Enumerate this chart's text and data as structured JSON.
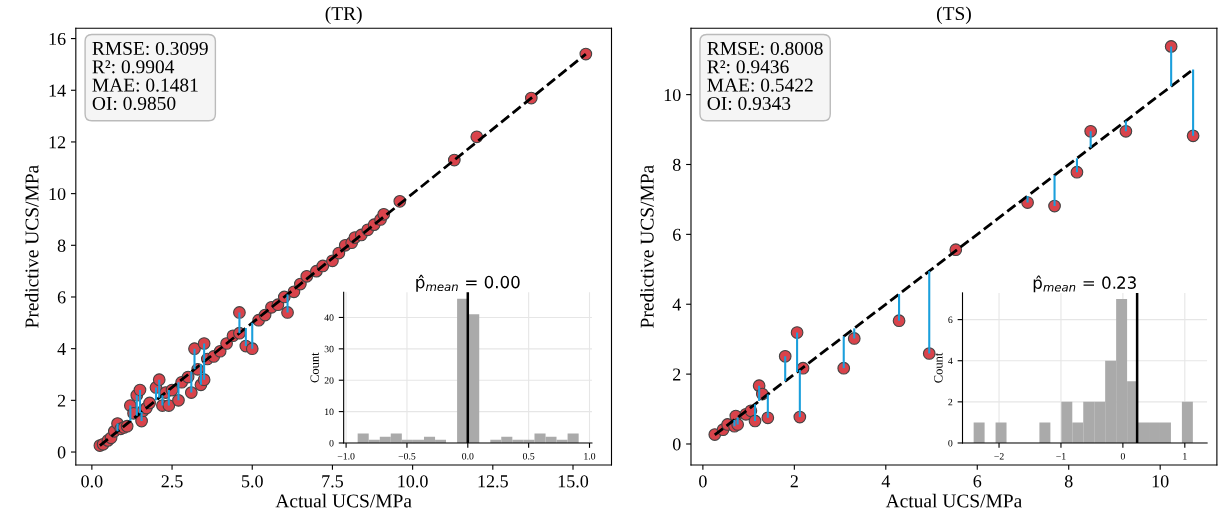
{
  "chart_data": [
    {
      "type": "scatter",
      "title": "(TR)",
      "xlabel": "Actual UCS/MPa",
      "ylabel": "Predictive UCS/MPa",
      "xlim": [
        -0.5,
        16.2
      ],
      "ylim": [
        -0.5,
        16.4
      ],
      "xticks": [
        {
          "value": 0,
          "label": "0.0"
        },
        {
          "value": 2.5,
          "label": "2.5"
        },
        {
          "value": 5,
          "label": "5.0"
        },
        {
          "value": 7.5,
          "label": "7.5"
        },
        {
          "value": 10,
          "label": "10.0"
        },
        {
          "value": 12.5,
          "label": "12.5"
        },
        {
          "value": 15,
          "label": "15.0"
        }
      ],
      "yticks": [
        0,
        2,
        4,
        6,
        8,
        10,
        12,
        14,
        16
      ],
      "annotations": [
        "RMSE: 0.3099\nR²: 0.9904\nMAE: 0.1481\nOI: 0.9850"
      ],
      "series": [
        {
          "type": "scatter",
          "marker": "circle",
          "color": "#d9434b",
          "x": [
            0.25,
            0.35,
            0.5,
            0.6,
            0.7,
            0.8,
            0.9,
            1.0,
            1.1,
            1.2,
            1.3,
            1.4,
            1.5,
            1.55,
            1.6,
            1.7,
            1.8,
            2.0,
            2.1,
            2.2,
            2.3,
            2.4,
            2.5,
            2.7,
            2.8,
            3.0,
            3.1,
            3.2,
            3.3,
            3.4,
            3.5,
            3.5,
            3.6,
            3.8,
            4.0,
            4.2,
            4.4,
            4.6,
            4.6,
            4.8,
            5.0,
            5.2,
            5.4,
            5.6,
            5.8,
            6.0,
            6.1,
            6.3,
            6.5,
            6.7,
            7.0,
            7.2,
            7.5,
            7.7,
            7.9,
            8.1,
            8.2,
            8.4,
            8.6,
            8.8,
            9.0,
            9.1,
            9.6,
            11.3,
            12.0,
            13.7,
            15.4
          ],
          "values": [
            0.25,
            0.3,
            0.45,
            0.55,
            0.8,
            1.1,
            0.9,
            0.95,
            1.0,
            1.8,
            1.5,
            2.2,
            2.4,
            1.2,
            1.6,
            1.7,
            1.9,
            2.5,
            2.8,
            1.8,
            2.3,
            1.8,
            2.4,
            2.0,
            2.7,
            2.9,
            2.3,
            4.0,
            3.2,
            2.6,
            4.2,
            2.8,
            3.6,
            3.7,
            3.9,
            4.2,
            4.5,
            4.6,
            5.4,
            4.1,
            4.0,
            5.1,
            5.3,
            5.6,
            5.7,
            6.0,
            5.4,
            6.2,
            6.5,
            6.8,
            7.0,
            7.2,
            7.4,
            7.7,
            8.0,
            8.1,
            8.3,
            8.4,
            8.6,
            8.8,
            9.0,
            9.2,
            9.7,
            11.3,
            12.2,
            13.7,
            15.4
          ],
          "errors": [
            null,
            null,
            null,
            null,
            null,
            [
              0.8,
              1.1
            ],
            null,
            null,
            null,
            [
              1.2,
              1.8
            ],
            null,
            [
              1.4,
              2.2
            ],
            [
              1.5,
              2.4
            ],
            [
              1.2,
              1.55
            ],
            null,
            null,
            null,
            [
              2.0,
              2.5
            ],
            [
              2.1,
              2.8
            ],
            [
              1.8,
              2.2
            ],
            null,
            [
              1.8,
              2.4
            ],
            null,
            [
              2.0,
              2.7
            ],
            null,
            null,
            [
              2.3,
              3.1
            ],
            [
              3.2,
              4.0
            ],
            null,
            [
              2.6,
              3.4
            ],
            [
              3.5,
              4.2
            ],
            [
              2.8,
              3.5
            ],
            null,
            null,
            null,
            null,
            null,
            null,
            [
              4.6,
              5.4
            ],
            [
              4.1,
              4.8
            ],
            [
              4.0,
              5.0
            ],
            null,
            null,
            null,
            null,
            null,
            [
              5.4,
              6.1
            ],
            null,
            null,
            null,
            null,
            null,
            null,
            null,
            null,
            null,
            null,
            null,
            null,
            null,
            null,
            null,
            null,
            null,
            null,
            null,
            null
          ]
        },
        {
          "type": "line",
          "line_style": "dashed",
          "color": "#000000",
          "x": [
            0.25,
            15.4
          ],
          "values": [
            0.25,
            15.4
          ]
        }
      ]
    },
    {
      "type": "histogram",
      "title": "p̂$_{mean}$ = 0.00",
      "ylabel": "Count",
      "color": "#aaaaaa",
      "grid": true,
      "xlim": [
        -1.02,
        1.02
      ],
      "ylim": [
        0,
        48
      ],
      "xticks": [
        {
          "value": -1.0,
          "label": "−1.0"
        },
        {
          "value": -0.5,
          "label": "−0.5"
        },
        {
          "value": 0.0,
          "label": "0.0"
        },
        {
          "value": 0.5,
          "label": "0.5"
        },
        {
          "value": 1.0,
          "label": "1.0"
        }
      ],
      "yticks": [
        0,
        10,
        20,
        30,
        40
      ],
      "bins": [
        -0.905,
        -0.814,
        -0.723,
        -0.633,
        -0.542,
        -0.451,
        -0.36,
        -0.269,
        -0.179,
        -0.088,
        0.003,
        0.094,
        0.185,
        0.275,
        0.366,
        0.457,
        0.548,
        0.639,
        0.729,
        0.82,
        0.911
      ],
      "values": [
        3,
        1,
        2,
        3,
        1,
        1,
        2,
        1,
        0,
        46,
        41,
        0,
        1,
        2,
        1,
        1,
        3,
        2,
        1,
        3
      ],
      "ref_lines": [
        {
          "axis": "x",
          "value": 0.0,
          "color": "#000000"
        }
      ]
    },
    {
      "type": "scatter",
      "title": "(TS)",
      "xlabel": "Actual UCS/MPa",
      "ylabel": "Predictive UCS/MPa",
      "xlim": [
        -0.26,
        11.24
      ],
      "ylim": [
        -0.6,
        11.9
      ],
      "xticks": [
        0,
        2,
        4,
        6,
        8,
        10
      ],
      "yticks": [
        0,
        2,
        4,
        6,
        8,
        10
      ],
      "annotations": [
        "RMSE: 0.8008\nR²: 0.9436\nMAE: 0.5422\nOI: 0.9343"
      ],
      "series": [
        {
          "type": "scatter",
          "marker": "circle",
          "color": "#d9434b",
          "x": [
            0.26,
            0.44,
            0.54,
            0.72,
            0.69,
            0.76,
            0.94,
            1.05,
            1.14,
            1.23,
            1.3,
            1.42,
            1.8,
            2.06,
            2.12,
            2.19,
            3.08,
            3.31,
            4.29,
            4.95,
            5.53,
            7.1,
            7.69,
            8.18,
            8.48,
            9.25,
            10.24,
            10.72
          ],
          "values": [
            0.27,
            0.41,
            0.56,
            0.8,
            0.51,
            0.56,
            0.85,
            0.95,
            0.66,
            1.67,
            1.43,
            0.75,
            2.51,
            3.19,
            0.77,
            2.17,
            2.17,
            3.02,
            3.53,
            2.59,
            5.56,
            6.91,
            6.81,
            7.78,
            8.95,
            8.95,
            11.38,
            8.82
          ],
          "errors": [
            null,
            null,
            null,
            null,
            [
              0.51,
              0.69
            ],
            [
              0.56,
              0.76
            ],
            null,
            null,
            [
              0.66,
              1.14
            ],
            [
              1.23,
              1.67
            ],
            null,
            [
              0.75,
              1.42
            ],
            [
              1.8,
              2.51
            ],
            [
              2.06,
              3.19
            ],
            [
              0.77,
              2.12
            ],
            null,
            [
              2.17,
              3.08
            ],
            [
              3.02,
              3.31
            ],
            [
              3.53,
              4.29
            ],
            [
              2.59,
              4.95
            ],
            null,
            [
              6.91,
              7.1
            ],
            [
              6.81,
              7.69
            ],
            [
              7.78,
              8.18
            ],
            [
              8.48,
              8.95
            ],
            [
              8.95,
              9.25
            ],
            [
              10.24,
              11.38
            ],
            [
              8.82,
              10.72
            ]
          ]
        },
        {
          "type": "line",
          "line_style": "dashed",
          "color": "#000000",
          "x": [
            0.26,
            10.72
          ],
          "values": [
            0.26,
            10.72
          ]
        }
      ]
    },
    {
      "type": "histogram",
      "title": "p̂$_{mean}$ = 0.23",
      "ylabel": "Count",
      "color": "#aaaaaa",
      "grid": true,
      "xlim": [
        -2.59,
        1.36
      ],
      "ylim": [
        0,
        7.3
      ],
      "xticks": [
        {
          "value": -2,
          "label": "−2"
        },
        {
          "value": -1,
          "label": "−1"
        },
        0,
        1
      ],
      "yticks": [
        0,
        2,
        4,
        6
      ],
      "bins": [
        -2.41,
        -2.233,
        -2.056,
        -1.879,
        -1.702,
        -1.525,
        -1.348,
        -1.171,
        -0.994,
        -0.817,
        -0.64,
        -0.463,
        -0.286,
        -0.109,
        0.068,
        0.245,
        0.422,
        0.599,
        0.776,
        0.953,
        1.13
      ],
      "values": [
        1,
        0,
        1,
        0,
        0,
        0,
        1,
        0,
        2,
        1,
        2,
        2,
        4,
        7,
        3,
        1,
        1,
        1,
        0,
        2
      ],
      "ref_lines": [
        {
          "axis": "x",
          "value": 0.23,
          "color": "#000000"
        }
      ]
    }
  ]
}
